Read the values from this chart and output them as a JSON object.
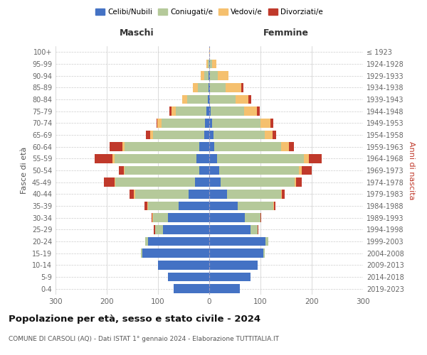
{
  "age_groups": [
    "0-4",
    "5-9",
    "10-14",
    "15-19",
    "20-24",
    "25-29",
    "30-34",
    "35-39",
    "40-44",
    "45-49",
    "50-54",
    "55-59",
    "60-64",
    "65-69",
    "70-74",
    "75-79",
    "80-84",
    "85-89",
    "90-94",
    "95-99",
    "100+"
  ],
  "birth_years": [
    "2019-2023",
    "2014-2018",
    "2009-2013",
    "2004-2008",
    "1999-2003",
    "1994-1998",
    "1989-1993",
    "1984-1988",
    "1979-1983",
    "1974-1978",
    "1969-1973",
    "1964-1968",
    "1959-1963",
    "1954-1958",
    "1949-1953",
    "1944-1948",
    "1939-1943",
    "1934-1938",
    "1929-1933",
    "1924-1928",
    "≤ 1923"
  ],
  "male_celibi": [
    70,
    80,
    100,
    130,
    120,
    90,
    80,
    60,
    40,
    28,
    20,
    25,
    20,
    10,
    8,
    5,
    3,
    2,
    2,
    0,
    0
  ],
  "male_coniugati": [
    0,
    0,
    0,
    3,
    5,
    15,
    30,
    60,
    105,
    155,
    145,
    160,
    145,
    100,
    85,
    60,
    40,
    20,
    8,
    3,
    0
  ],
  "male_vedovi": [
    0,
    0,
    0,
    0,
    0,
    1,
    1,
    1,
    2,
    2,
    2,
    4,
    5,
    5,
    8,
    8,
    10,
    10,
    6,
    2,
    0
  ],
  "male_divorziati": [
    0,
    0,
    0,
    0,
    0,
    2,
    2,
    5,
    8,
    20,
    10,
    35,
    25,
    8,
    2,
    5,
    0,
    0,
    0,
    0,
    0
  ],
  "female_celibi": [
    60,
    80,
    95,
    105,
    110,
    80,
    70,
    55,
    35,
    22,
    20,
    15,
    10,
    8,
    5,
    3,
    2,
    2,
    2,
    1,
    0
  ],
  "female_coniugati": [
    0,
    0,
    0,
    3,
    5,
    15,
    30,
    70,
    105,
    145,
    155,
    170,
    130,
    100,
    95,
    65,
    50,
    30,
    15,
    5,
    0
  ],
  "female_vedovi": [
    0,
    0,
    0,
    0,
    0,
    0,
    0,
    1,
    2,
    3,
    5,
    10,
    15,
    15,
    20,
    25,
    25,
    30,
    20,
    8,
    2
  ],
  "female_divorziati": [
    0,
    0,
    0,
    0,
    0,
    1,
    2,
    3,
    5,
    10,
    20,
    25,
    10,
    8,
    5,
    5,
    5,
    5,
    0,
    0,
    0
  ],
  "color_celibi": "#4472c4",
  "color_coniugati": "#b5c99a",
  "color_vedovi": "#f5c06e",
  "color_divorziati": "#c0392b",
  "color_background": "#ffffff",
  "color_grid": "#cccccc",
  "color_centerline": "#9999bb",
  "title": "Popolazione per età, sesso e stato civile - 2024",
  "subtitle": "COMUNE DI CARSOLI (AQ) - Dati ISTAT 1° gennaio 2024 - Elaborazione TUTTITALIA.IT",
  "xlabel_left": "Maschi",
  "xlabel_right": "Femmine",
  "ylabel_left": "Fasce di età",
  "ylabel_right": "Anni di nascita",
  "xlim": 300,
  "legend_labels": [
    "Celibi/Nubili",
    "Coniugati/e",
    "Vedovi/e",
    "Divorziati/e"
  ]
}
